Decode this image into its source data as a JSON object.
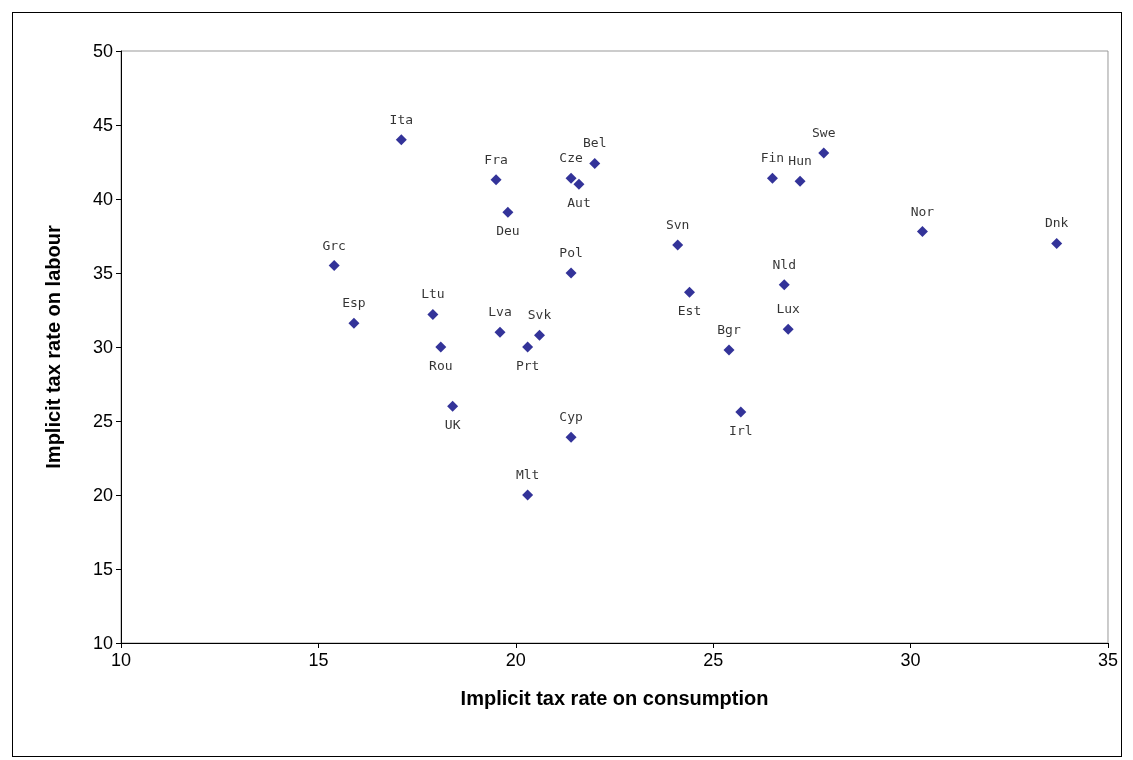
{
  "chart_data": {
    "type": "scatter",
    "xlabel": "Implicit tax rate on consumption",
    "ylabel": "Implicit tax rate on labour",
    "marker": "diamond",
    "grid": false,
    "x": [
      17.1,
      19.5,
      19.8,
      21.4,
      21.6,
      22.0,
      21.4,
      15.4,
      15.9,
      17.9,
      18.1,
      18.4,
      19.6,
      20.6,
      20.3,
      21.4,
      20.3,
      24.1,
      24.4,
      25.4,
      25.7,
      26.8,
      26.9,
      26.5,
      27.2,
      27.8,
      30.3,
      33.7
    ],
    "series": [
      {
        "color": "#000080",
        "values": [
          44.0,
          41.3,
          39.1,
          41.4,
          41.0,
          42.4,
          35.0,
          35.5,
          31.6,
          32.2,
          30.0,
          26.0,
          31.0,
          30.8,
          30.0,
          23.9,
          20.0,
          36.9,
          33.7,
          29.8,
          25.6,
          34.2,
          31.2,
          41.4,
          41.2,
          43.1,
          37.8,
          37.0
        ]
      }
    ],
    "xlim": [
      10,
      35
    ],
    "xticks": [
      10,
      15,
      20,
      25,
      30,
      35
    ],
    "ylim": [
      10,
      50
    ],
    "yticks": [
      10,
      15,
      20,
      25,
      30,
      35,
      40,
      45,
      50
    ],
    "annotations": [
      {
        "text": "Ita",
        "x": 17.1,
        "y": 44.0
      },
      {
        "text": "Fra",
        "x": 19.5,
        "y": 41.3
      },
      {
        "text": "Deu",
        "x": 19.8,
        "y": 39.1
      },
      {
        "text": "Cze",
        "x": 21.4,
        "y": 41.4
      },
      {
        "text": "Aut",
        "x": 21.6,
        "y": 41.0
      },
      {
        "text": "Bel",
        "x": 22.0,
        "y": 42.4
      },
      {
        "text": "Pol",
        "x": 21.4,
        "y": 35.0
      },
      {
        "text": "Grc",
        "x": 15.4,
        "y": 35.5
      },
      {
        "text": "Esp",
        "x": 15.9,
        "y": 31.6
      },
      {
        "text": "Ltu",
        "x": 17.9,
        "y": 32.2
      },
      {
        "text": "Rou",
        "x": 18.1,
        "y": 30.0
      },
      {
        "text": "UK",
        "x": 18.4,
        "y": 26.0
      },
      {
        "text": "Lva",
        "x": 19.6,
        "y": 31.0
      },
      {
        "text": "Svk",
        "x": 20.6,
        "y": 30.8
      },
      {
        "text": "Prt",
        "x": 20.3,
        "y": 30.0
      },
      {
        "text": "Cyp",
        "x": 21.4,
        "y": 23.9
      },
      {
        "text": "Mlt",
        "x": 20.3,
        "y": 20.0
      },
      {
        "text": "Svn",
        "x": 24.1,
        "y": 36.9
      },
      {
        "text": "Est",
        "x": 24.4,
        "y": 33.7
      },
      {
        "text": "Bgr",
        "x": 25.4,
        "y": 29.8
      },
      {
        "text": "Irl",
        "x": 25.7,
        "y": 25.6
      },
      {
        "text": "Nld",
        "x": 26.8,
        "y": 34.2
      },
      {
        "text": "Lux",
        "x": 26.9,
        "y": 31.2
      },
      {
        "text": "Fin",
        "x": 26.5,
        "y": 41.4
      },
      {
        "text": "Hun",
        "x": 27.2,
        "y": 41.2
      },
      {
        "text": "Swe",
        "x": 27.8,
        "y": 43.1
      },
      {
        "text": "Nor",
        "x": 30.3,
        "y": 37.8
      },
      {
        "text": "Dnk",
        "x": 33.7,
        "y": 37.0
      }
    ]
  }
}
